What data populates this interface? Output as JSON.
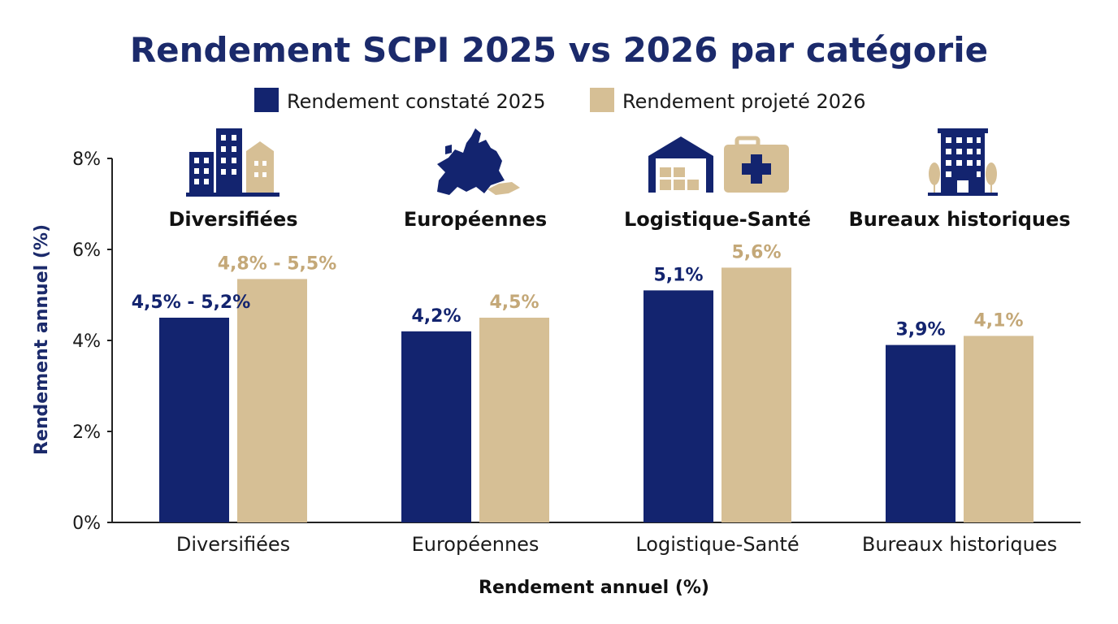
{
  "colors": {
    "navy": "#13246f",
    "sand": "#d6bf95",
    "title": "#1b2a6b",
    "ylabel": "#1b2a6b"
  },
  "chart_data": {
    "type": "bar",
    "title": "Rendement SCPI 2025 vs 2026 par catégorie",
    "xlabel": "Rendement annuel (%)",
    "ylabel": "Rendement annuel (%)",
    "ylim": [
      0,
      8
    ],
    "yticks": [
      0,
      2,
      4,
      6,
      8
    ],
    "ytick_labels": [
      "0%",
      "2%",
      "4%",
      "6%",
      "8%"
    ],
    "grid": false,
    "legend_position": "top",
    "categories": [
      "Diversifiées",
      "Européennes",
      "Logistique-Santé",
      "Bureaux historiques"
    ],
    "category_icons": [
      "city-buildings-icon",
      "europe-map-icon",
      "warehouse-medical-case-icon",
      "office-tower-icon"
    ],
    "series": [
      {
        "name": "Rendement constaté 2025",
        "color": "#13246f",
        "values": [
          4.5,
          4.2,
          5.1,
          3.9
        ],
        "labels": [
          "4,5% - 5,2%",
          "4,2%",
          "5,1%",
          "3,9%"
        ]
      },
      {
        "name": "Rendement projeté 2026",
        "color": "#d6bf95",
        "values": [
          5.35,
          4.5,
          5.6,
          4.1
        ],
        "labels": [
          "4,8% - 5,5%",
          "4,5%",
          "5,6%",
          "4,1%"
        ]
      }
    ]
  }
}
